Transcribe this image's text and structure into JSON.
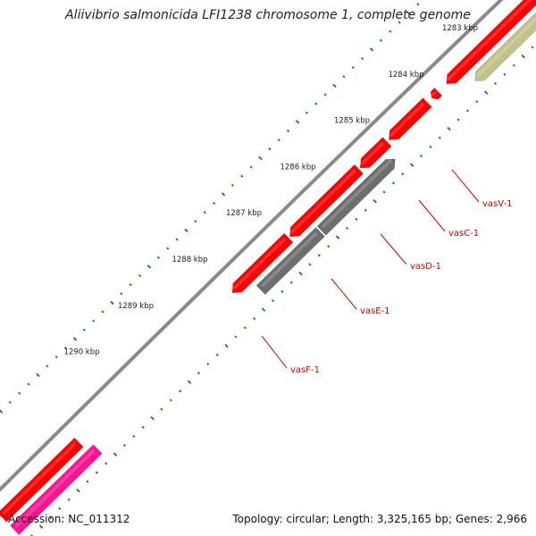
{
  "title": "Aliivibrio salmonicida LFI1238 chromosome 1, complete genome",
  "footer": {
    "accession": "Accession: NC_011312",
    "summary": "Topology: circular; Length: 3,325,165 bp; Genes: 2,966"
  },
  "ticks": [
    {
      "label": "1283 kbp"
    },
    {
      "label": "1284 kbp"
    },
    {
      "label": "1285 kbp"
    },
    {
      "label": "1286 kbp"
    },
    {
      "label": "1287 kbp"
    },
    {
      "label": "1288 kbp"
    },
    {
      "label": "1289 kbp"
    },
    {
      "label": "1290 kbp"
    }
  ],
  "genes": [
    {
      "label": "vasV-1"
    },
    {
      "label": "vasC-1"
    },
    {
      "label": "vasD-1"
    },
    {
      "label": "vasE-1"
    },
    {
      "label": "vasF-1"
    }
  ],
  "colors": {
    "backbone": "#8a8a8a",
    "cds_forward": "#ff0000",
    "cds_gray": "#6e6e6e",
    "cds_khaki": "#c2c28a",
    "cds_pink": "#ff1493",
    "ticks": "#1a7a1a",
    "gene_labels": "#cc0000"
  }
}
